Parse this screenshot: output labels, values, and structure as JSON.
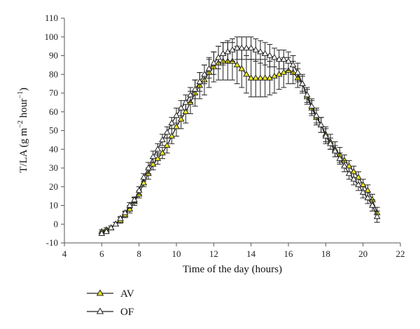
{
  "chart_data": {
    "type": "line",
    "xlabel": "Time of the day (hours)",
    "ylabel_parts": {
      "base": "T/LA (g m",
      "sup1": "−2",
      "mid": " hour",
      "sup2": "−1",
      "end": ")"
    },
    "xlim": [
      4,
      22
    ],
    "ylim": [
      -10,
      110
    ],
    "x_ticks": [
      4,
      6,
      8,
      10,
      12,
      14,
      16,
      18,
      20,
      22
    ],
    "y_ticks": [
      -10,
      0,
      10,
      20,
      30,
      40,
      50,
      60,
      70,
      80,
      90,
      100,
      110
    ],
    "grid": false,
    "legend_position": "bottom-left",
    "colors": {
      "AV_marker": "#f0ea1c",
      "OF_marker": "#ffffff",
      "line": "#222222"
    },
    "series": [
      {
        "name": "AV",
        "x": [
          6.0,
          6.25,
          6.5,
          6.75,
          7.0,
          7.25,
          7.5,
          7.75,
          8.0,
          8.25,
          8.5,
          8.75,
          9.0,
          9.25,
          9.5,
          9.75,
          10.0,
          10.25,
          10.5,
          10.75,
          11.0,
          11.25,
          11.5,
          11.75,
          12.0,
          12.25,
          12.5,
          12.75,
          13.0,
          13.25,
          13.5,
          13.75,
          14.0,
          14.25,
          14.5,
          14.75,
          15.0,
          15.25,
          15.5,
          15.75,
          16.0,
          16.25,
          16.5,
          16.75,
          17.0,
          17.25,
          17.5,
          17.75,
          18.0,
          18.25,
          18.5,
          18.75,
          19.0,
          19.25,
          19.5,
          19.75,
          20.0,
          20.25,
          20.5,
          20.75
        ],
        "y": [
          -4,
          -3,
          -2,
          0,
          2,
          5,
          8,
          12,
          16,
          22,
          27,
          32,
          35,
          38,
          42,
          47,
          52,
          56,
          60,
          65,
          70,
          74,
          77,
          81,
          84,
          86,
          87,
          87,
          87,
          85,
          83,
          80,
          78,
          78,
          78,
          78,
          78,
          79,
          80,
          81,
          82,
          81,
          78,
          75,
          68,
          62,
          57,
          53,
          48,
          44,
          40,
          37,
          34,
          31,
          28,
          25,
          21,
          18,
          13,
          6
        ],
        "error": [
          1,
          1,
          1,
          1,
          1.5,
          1.5,
          2,
          2,
          2,
          2,
          3,
          3,
          3,
          3,
          4,
          4,
          5,
          5,
          6,
          6,
          7,
          7,
          8,
          8,
          8,
          9,
          10,
          10,
          10,
          10,
          10,
          10,
          10,
          10,
          10,
          10,
          9,
          9,
          8,
          8,
          7,
          6,
          5,
          5,
          4,
          4,
          4,
          4,
          4,
          4,
          4,
          4,
          3,
          3,
          3,
          3,
          3,
          3,
          3,
          3
        ]
      },
      {
        "name": "OF",
        "x": [
          6.0,
          6.25,
          6.5,
          6.75,
          7.0,
          7.25,
          7.5,
          7.75,
          8.0,
          8.25,
          8.5,
          8.75,
          9.0,
          9.25,
          9.5,
          9.75,
          10.0,
          10.25,
          10.5,
          10.75,
          11.0,
          11.25,
          11.5,
          11.75,
          12.0,
          12.25,
          12.5,
          12.75,
          13.0,
          13.25,
          13.5,
          13.75,
          14.0,
          14.25,
          14.5,
          14.75,
          15.0,
          15.25,
          15.5,
          15.75,
          16.0,
          16.25,
          16.5,
          16.75,
          17.0,
          17.25,
          17.5,
          17.75,
          18.0,
          18.25,
          18.5,
          18.75,
          19.0,
          19.25,
          19.5,
          19.75,
          20.0,
          20.25,
          20.5,
          20.75
        ],
        "y": [
          -5,
          -4,
          -2,
          0,
          3,
          6,
          10,
          13,
          18,
          25,
          30,
          36,
          40,
          45,
          49,
          54,
          58,
          62,
          65,
          69,
          72,
          76,
          80,
          83,
          86,
          89,
          91,
          92,
          93,
          94,
          94,
          94,
          94,
          93,
          92,
          91,
          90,
          89,
          88,
          88,
          87,
          85,
          81,
          75,
          69,
          63,
          58,
          53,
          47,
          43,
          39,
          35,
          31,
          27,
          24,
          21,
          17,
          14,
          10,
          4
        ],
        "error": [
          1,
          1,
          1,
          1,
          1,
          1,
          1.5,
          1.5,
          2,
          2,
          3,
          3,
          3,
          3,
          3,
          3,
          4,
          4,
          4,
          4,
          5,
          5,
          5,
          5,
          6,
          6,
          6,
          6,
          6,
          6,
          6,
          6,
          6,
          6,
          6,
          6,
          6,
          5,
          5,
          5,
          5,
          5,
          5,
          4,
          4,
          4,
          4,
          4,
          4,
          3,
          3,
          3,
          3,
          3,
          3,
          3,
          3,
          3,
          3,
          3
        ]
      }
    ]
  }
}
